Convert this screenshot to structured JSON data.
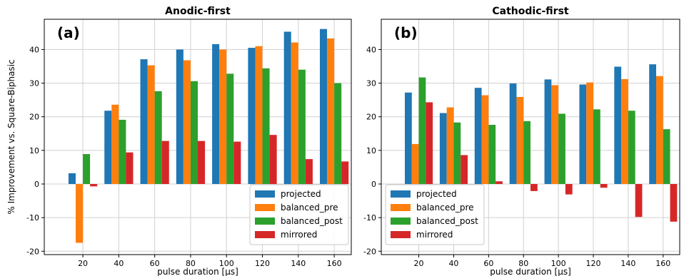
{
  "chart_data": [
    {
      "type": "bar",
      "title": "Anodic-first",
      "panel_label": "(a)",
      "xlabel": "pulse duration [μs]",
      "ylabel": "% Improvement vs. Square-Biphasic",
      "categories": [
        "20",
        "40",
        "60",
        "80",
        "100",
        "120",
        "140",
        "160"
      ],
      "ylim": [
        -21,
        49
      ],
      "yticks": [
        -20,
        -10,
        0,
        10,
        20,
        30,
        40
      ],
      "grid": true,
      "legend_position": "bottom-right",
      "series": [
        {
          "name": "projected",
          "color": "#1f77b4",
          "values": [
            3.2,
            21.8,
            37.1,
            40.0,
            41.6,
            40.5,
            45.3,
            46.1
          ]
        },
        {
          "name": "balanced_pre",
          "color": "#ff7f0e",
          "values": [
            -17.5,
            23.6,
            35.3,
            36.8,
            40.0,
            41.0,
            42.1,
            43.3
          ]
        },
        {
          "name": "balanced_post",
          "color": "#2ca02c",
          "values": [
            8.9,
            19.1,
            27.6,
            30.6,
            32.8,
            34.4,
            34.0,
            30.0
          ]
        },
        {
          "name": "mirrored",
          "color": "#d62728",
          "values": [
            -0.7,
            9.4,
            12.8,
            12.8,
            12.6,
            14.6,
            7.4,
            6.7
          ]
        }
      ]
    },
    {
      "type": "bar",
      "title": "Cathodic-first",
      "panel_label": "(b)",
      "xlabel": "pulse duration [μs]",
      "ylabel": "",
      "categories": [
        "20",
        "40",
        "60",
        "80",
        "100",
        "120",
        "140",
        "160"
      ],
      "ylim": [
        -21,
        49
      ],
      "yticks": [
        -20,
        -10,
        0,
        10,
        20,
        30,
        40
      ],
      "grid": true,
      "legend_position": "bottom-left",
      "series": [
        {
          "name": "projected",
          "color": "#1f77b4",
          "values": [
            27.2,
            21.1,
            28.6,
            29.9,
            31.1,
            29.6,
            34.9,
            35.6
          ]
        },
        {
          "name": "balanced_pre",
          "color": "#ff7f0e",
          "values": [
            11.9,
            22.8,
            26.4,
            25.9,
            29.4,
            30.2,
            31.2,
            32.1
          ]
        },
        {
          "name": "balanced_post",
          "color": "#2ca02c",
          "values": [
            31.7,
            18.3,
            17.6,
            18.7,
            20.9,
            22.2,
            21.8,
            16.3
          ]
        },
        {
          "name": "mirrored",
          "color": "#d62728",
          "values": [
            24.3,
            8.6,
            0.8,
            -2.1,
            -3.1,
            -1.1,
            -9.8,
            -11.2
          ]
        }
      ]
    }
  ]
}
